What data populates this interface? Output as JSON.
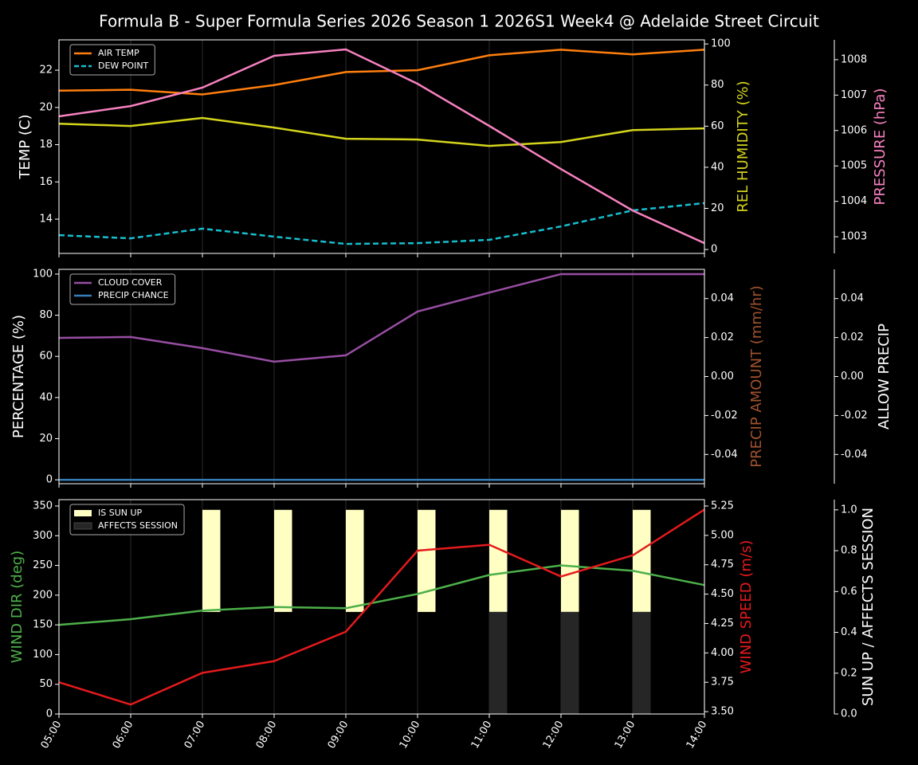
{
  "chart_data": [
    {
      "type": "line",
      "title": "Formula B - Super Formula Series 2026 Season 1 2026S1 Week4 @ Adelaide Street Circuit",
      "ylabel": "TEMP (C)",
      "ylabel_color": "#ffffff",
      "y2label": "REL HUMIDITY (%)",
      "y2label_color": "#d4d41c",
      "y3label": "PRESSURE (hPa)",
      "y3label_color": "#f781bf",
      "ylim": [
        12.16,
        23.63
      ],
      "yticks": [
        14,
        16,
        18,
        20,
        22
      ],
      "y2lim": [
        -1.9,
        102
      ],
      "y2ticks": [
        0,
        20,
        40,
        60,
        80,
        100
      ],
      "y3lim": [
        1002.53,
        1008.56
      ],
      "y3ticks": [
        1003,
        1004,
        1005,
        1006,
        1007,
        1008
      ],
      "legend": "upper left",
      "series": [
        {
          "name": "AIR TEMP",
          "color": "#ff7f0e",
          "axis": "y",
          "values": [
            20.9,
            20.95,
            20.7,
            21.2,
            21.9,
            22.0,
            22.8,
            23.1,
            22.85,
            23.1
          ]
        },
        {
          "name": "DEW POINT",
          "color": "#17becf",
          "axis": "y",
          "dashed": true,
          "values": [
            13.14,
            12.97,
            13.49,
            13.06,
            12.67,
            12.71,
            12.89,
            13.61,
            14.47,
            14.86
          ]
        },
        {
          "color": "#d4d41c",
          "axis": "y2",
          "values": [
            61.2,
            60.1,
            64.0,
            59.3,
            53.9,
            53.5,
            50.4,
            52.3,
            58.1,
            58.9
          ]
        },
        {
          "color": "#f781bf",
          "axis": "y3",
          "values": [
            1006.4,
            1006.69,
            1007.21,
            1008.11,
            1008.29,
            1007.32,
            1006.13,
            1004.91,
            1003.74,
            1002.82
          ]
        }
      ]
    },
    {
      "type": "line",
      "ylabel": "PERCENTAGE (%)",
      "ylabel_color": "#ffffff",
      "y2label": "PRECIP AMOUNT (mm/hr)",
      "y2label_color": "#a0522d",
      "y3label": "ALLOW PRECIP",
      "y3label_color": "#ffffff",
      "ylim": [
        -1.9,
        102.3
      ],
      "yticks": [
        0,
        20,
        40,
        60,
        80,
        100
      ],
      "y2lim": [
        -0.055,
        0.055
      ],
      "y2ticks": [
        -0.04,
        -0.02,
        {
          "value": 0,
          "label": "0.00"
        },
        0.02,
        0.04
      ],
      "y3lim": [
        -0.055,
        0.055
      ],
      "y3ticks": [
        -0.04,
        -0.02,
        {
          "value": 0,
          "label": "0.00"
        },
        0.02,
        0.04
      ],
      "legend": "upper left",
      "series": [
        {
          "name": "CLOUD COVER",
          "color": "#984ea3",
          "axis": "y",
          "values": [
            69,
            69.4,
            64,
            57.4,
            60.5,
            81.8,
            91,
            100,
            100,
            100
          ]
        },
        {
          "name": "PRECIP CHANCE",
          "color": "#377eb8",
          "axis": "y",
          "values": [
            0,
            0,
            0,
            0,
            0,
            0,
            0,
            0,
            0,
            0
          ]
        }
      ]
    },
    {
      "type": "mixed",
      "categories": [
        "05:00",
        "06:00",
        "07:00",
        "08:00",
        "09:00",
        "10:00",
        "11:00",
        "12:00",
        "13:00",
        "14:00"
      ],
      "ylabel": "WIND DIR (deg)",
      "ylabel_color": "#4daf4a",
      "y2label": "WIND SPEED (m/s)",
      "y2label_color": "#e41a1c",
      "y3label": "SUN UP / AFFECTS SESSION",
      "y3label_color": "#ffffff",
      "ylim": [
        0,
        360.7
      ],
      "yticks": [
        0,
        50,
        100,
        150,
        200,
        250,
        300,
        350
      ],
      "y2lim": [
        3.48,
        5.304
      ],
      "y2ticks": [
        {
          "value": 3.5,
          "label": "3.50"
        },
        3.75,
        {
          "value": 4,
          "label": "4.00"
        },
        4.25,
        {
          "value": 4.5,
          "label": "4.50"
        },
        4.75,
        {
          "value": 5,
          "label": "5.00"
        },
        5.25
      ],
      "y3lim": [
        0,
        1.05
      ],
      "y3ticks": [
        {
          "value": 0,
          "label": "0.0"
        },
        0.2,
        0.4,
        0.6,
        0.8,
        {
          "value": 1,
          "label": "1.0"
        }
      ],
      "legend": "upper left",
      "series": [
        {
          "name": "IS SUN UP",
          "type": "bar",
          "color": "#ffffc4",
          "axis": "y3",
          "bottom": 0.5,
          "values": [
            null,
            null,
            1,
            1,
            1,
            1,
            1,
            1,
            1,
            null
          ]
        },
        {
          "name": "AFFECTS SESSION",
          "type": "bar",
          "color": "#262626",
          "axis": "y3",
          "bottom": 0,
          "values": [
            0,
            0,
            0,
            0,
            0,
            0,
            0.5,
            0.5,
            0.5,
            0
          ]
        },
        {
          "type": "line",
          "color": "#4daf4a",
          "axis": "y",
          "values": [
            150,
            159.5,
            174,
            180,
            178,
            202,
            234,
            250,
            241,
            217
          ]
        },
        {
          "type": "line",
          "color": "#e41a1c",
          "axis": "y2",
          "values": [
            3.75,
            3.56,
            3.83,
            3.93,
            4.18,
            4.87,
            4.92,
            4.65,
            4.83,
            5.22
          ]
        }
      ]
    }
  ]
}
